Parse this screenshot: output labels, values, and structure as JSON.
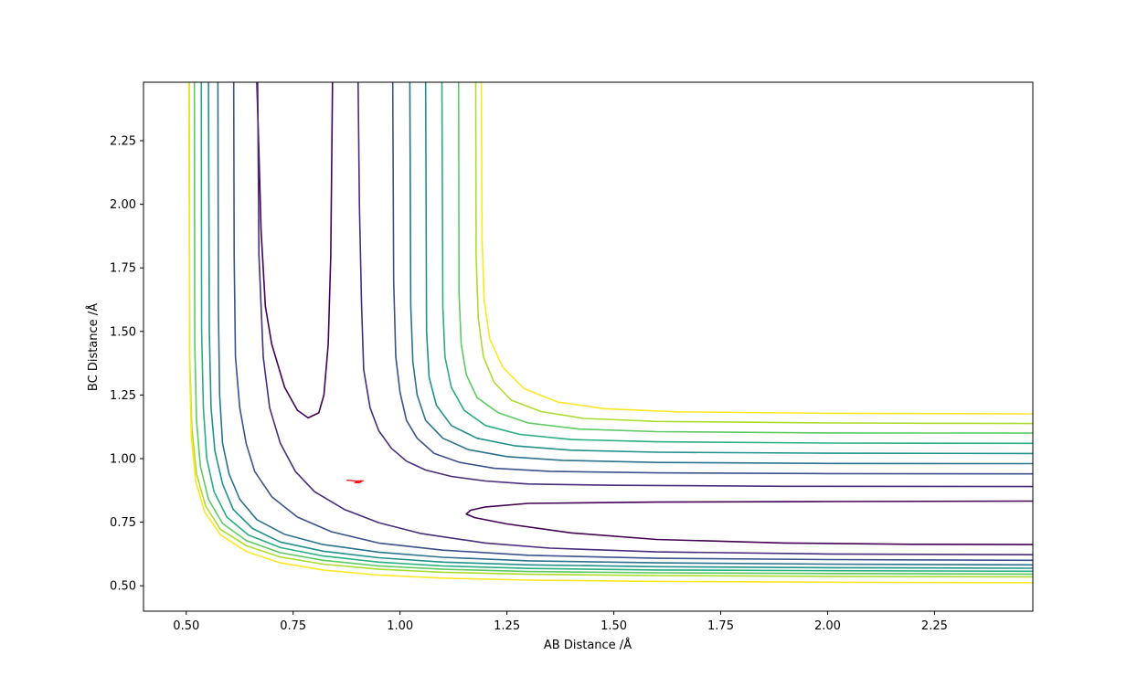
{
  "chart_data": {
    "type": "contour",
    "xlabel": "AB Distance /Å",
    "ylabel": "BC Distance /Å",
    "xlim": [
      0.4,
      2.48
    ],
    "ylim": [
      0.4,
      2.48
    ],
    "x_ticks": [
      0.5,
      0.75,
      1.0,
      1.25,
      1.5,
      1.75,
      2.0,
      2.25
    ],
    "y_ticks": [
      0.5,
      0.75,
      1.0,
      1.25,
      1.5,
      1.75,
      2.0,
      2.25
    ],
    "x_tick_labels": [
      "0.50",
      "0.75",
      "1.00",
      "1.25",
      "1.50",
      "1.75",
      "2.00",
      "2.25"
    ],
    "y_tick_labels": [
      "0.50",
      "0.75",
      "1.00",
      "1.25",
      "1.50",
      "1.75",
      "2.00",
      "2.25"
    ],
    "colormap": "viridis",
    "contour_levels": [
      {
        "level": 0,
        "color": "#440154",
        "segments": [
          [
            [
              0.665,
              2.48
            ],
            [
              0.67,
              2.2
            ],
            [
              0.675,
              1.9
            ],
            [
              0.685,
              1.6
            ],
            [
              0.7,
              1.45
            ],
            [
              0.73,
              1.28
            ],
            [
              0.76,
              1.19
            ],
            [
              0.785,
              1.16
            ],
            [
              0.81,
              1.18
            ],
            [
              0.822,
              1.25
            ],
            [
              0.832,
              1.45
            ],
            [
              0.838,
              1.8
            ],
            [
              0.842,
              2.48
            ]
          ],
          [
            [
              2.48,
              0.833
            ],
            [
              2.0,
              0.831
            ],
            [
              1.6,
              0.829
            ],
            [
              1.3,
              0.824
            ],
            [
              1.2,
              0.81
            ],
            [
              1.165,
              0.797
            ],
            [
              1.155,
              0.782
            ],
            [
              1.175,
              0.768
            ],
            [
              1.25,
              0.743
            ],
            [
              1.4,
              0.708
            ],
            [
              1.6,
              0.682
            ],
            [
              1.9,
              0.668
            ],
            [
              2.2,
              0.663
            ],
            [
              2.48,
              0.662
            ]
          ]
        ]
      },
      {
        "level": 1,
        "color": "#472d7b",
        "segments": [
          [
            [
              2.48,
              0.89
            ],
            [
              1.9,
              0.891
            ],
            [
              1.5,
              0.895
            ],
            [
              1.3,
              0.9
            ],
            [
              1.2,
              0.912
            ],
            [
              1.12,
              0.93
            ],
            [
              1.06,
              0.955
            ],
            [
              1.015,
              0.99
            ],
            [
              0.98,
              1.04
            ],
            [
              0.95,
              1.11
            ],
            [
              0.93,
              1.2
            ],
            [
              0.915,
              1.35
            ],
            [
              0.91,
              1.6
            ],
            [
              0.905,
              2.0
            ],
            [
              0.902,
              2.48
            ]
          ],
          [
            [
              2.48,
              0.622
            ],
            [
              2.0,
              0.625
            ],
            [
              1.6,
              0.633
            ],
            [
              1.35,
              0.648
            ],
            [
              1.2,
              0.668
            ],
            [
              1.05,
              0.705
            ],
            [
              0.95,
              0.748
            ],
            [
              0.87,
              0.8
            ],
            [
              0.8,
              0.87
            ],
            [
              0.755,
              0.95
            ],
            [
              0.72,
              1.06
            ],
            [
              0.695,
              1.2
            ],
            [
              0.68,
              1.4
            ],
            [
              0.67,
              1.8
            ],
            [
              0.667,
              2.48
            ]
          ]
        ]
      },
      {
        "level": 2,
        "color": "#3b528b",
        "segments": [
          [
            [
              2.48,
              0.94
            ],
            [
              2.0,
              0.941
            ],
            [
              1.6,
              0.944
            ],
            [
              1.35,
              0.95
            ],
            [
              1.22,
              0.962
            ],
            [
              1.14,
              0.985
            ],
            [
              1.08,
              1.02
            ],
            [
              1.04,
              1.08
            ],
            [
              1.015,
              1.15
            ],
            [
              1.0,
              1.26
            ],
            [
              0.99,
              1.4
            ],
            [
              0.985,
              1.7
            ],
            [
              0.983,
              2.48
            ]
          ],
          [
            [
              2.48,
              0.6
            ],
            [
              2.0,
              0.603
            ],
            [
              1.6,
              0.608
            ],
            [
              1.3,
              0.62
            ],
            [
              1.1,
              0.64
            ],
            [
              0.95,
              0.668
            ],
            [
              0.84,
              0.712
            ],
            [
              0.76,
              0.77
            ],
            [
              0.7,
              0.85
            ],
            [
              0.66,
              0.95
            ],
            [
              0.64,
              1.06
            ],
            [
              0.625,
              1.2
            ],
            [
              0.615,
              1.4
            ],
            [
              0.612,
              1.8
            ],
            [
              0.611,
              2.48
            ]
          ]
        ]
      },
      {
        "level": 3,
        "color": "#2c728e",
        "segments": [
          [
            [
              2.48,
              0.98
            ],
            [
              2.0,
              0.981
            ],
            [
              1.6,
              0.985
            ],
            [
              1.38,
              0.993
            ],
            [
              1.25,
              1.008
            ],
            [
              1.16,
              1.035
            ],
            [
              1.1,
              1.08
            ],
            [
              1.06,
              1.15
            ],
            [
              1.04,
              1.25
            ],
            [
              1.03,
              1.38
            ],
            [
              1.025,
              1.6
            ],
            [
              1.023,
              2.48
            ]
          ],
          [
            [
              2.48,
              0.582
            ],
            [
              2.0,
              0.585
            ],
            [
              1.6,
              0.59
            ],
            [
              1.3,
              0.598
            ],
            [
              1.1,
              0.612
            ],
            [
              0.95,
              0.632
            ],
            [
              0.82,
              0.662
            ],
            [
              0.73,
              0.702
            ],
            [
              0.665,
              0.76
            ],
            [
              0.625,
              0.84
            ],
            [
              0.6,
              0.94
            ],
            [
              0.585,
              1.06
            ],
            [
              0.578,
              1.25
            ],
            [
              0.575,
              1.6
            ],
            [
              0.574,
              2.48
            ]
          ]
        ]
      },
      {
        "level": 4,
        "color": "#21918c",
        "segments": [
          [
            [
              2.48,
              1.02
            ],
            [
              2.0,
              1.021
            ],
            [
              1.6,
              1.025
            ],
            [
              1.4,
              1.033
            ],
            [
              1.27,
              1.05
            ],
            [
              1.18,
              1.08
            ],
            [
              1.12,
              1.13
            ],
            [
              1.085,
              1.21
            ],
            [
              1.068,
              1.32
            ],
            [
              1.062,
              1.5
            ],
            [
              1.06,
              2.48
            ]
          ],
          [
            [
              2.48,
              0.569
            ],
            [
              2.0,
              0.571
            ],
            [
              1.6,
              0.575
            ],
            [
              1.3,
              0.582
            ],
            [
              1.1,
              0.593
            ],
            [
              0.95,
              0.61
            ],
            [
              0.82,
              0.636
            ],
            [
              0.72,
              0.672
            ],
            [
              0.655,
              0.725
            ],
            [
              0.61,
              0.8
            ],
            [
              0.585,
              0.9
            ],
            [
              0.567,
              1.03
            ],
            [
              0.558,
              1.2
            ],
            [
              0.554,
              1.5
            ],
            [
              0.552,
              2.48
            ]
          ]
        ]
      },
      {
        "level": 5,
        "color": "#28ae80",
        "segments": [
          [
            [
              2.48,
              1.06
            ],
            [
              2.0,
              1.061
            ],
            [
              1.6,
              1.066
            ],
            [
              1.4,
              1.075
            ],
            [
              1.28,
              1.095
            ],
            [
              1.2,
              1.13
            ],
            [
              1.15,
              1.19
            ],
            [
              1.12,
              1.28
            ],
            [
              1.105,
              1.4
            ],
            [
              1.1,
              1.6
            ],
            [
              1.098,
              2.48
            ]
          ],
          [
            [
              2.48,
              0.557
            ],
            [
              2.0,
              0.559
            ],
            [
              1.6,
              0.562
            ],
            [
              1.3,
              0.568
            ],
            [
              1.1,
              0.578
            ],
            [
              0.95,
              0.593
            ],
            [
              0.82,
              0.617
            ],
            [
              0.72,
              0.65
            ],
            [
              0.645,
              0.7
            ],
            [
              0.595,
              0.77
            ],
            [
              0.565,
              0.87
            ],
            [
              0.548,
              1.0
            ],
            [
              0.54,
              1.2
            ],
            [
              0.536,
              1.5
            ],
            [
              0.535,
              2.48
            ]
          ]
        ]
      },
      {
        "level": 6,
        "color": "#5ec962",
        "segments": [
          [
            [
              2.48,
              1.1
            ],
            [
              2.0,
              1.101
            ],
            [
              1.6,
              1.106
            ],
            [
              1.42,
              1.116
            ],
            [
              1.3,
              1.14
            ],
            [
              1.23,
              1.18
            ],
            [
              1.18,
              1.24
            ],
            [
              1.155,
              1.33
            ],
            [
              1.143,
              1.45
            ],
            [
              1.138,
              1.65
            ],
            [
              1.137,
              2.48
            ]
          ],
          [
            [
              2.48,
              0.546
            ],
            [
              2.0,
              0.548
            ],
            [
              1.6,
              0.551
            ],
            [
              1.3,
              0.556
            ],
            [
              1.1,
              0.565
            ],
            [
              0.95,
              0.578
            ],
            [
              0.82,
              0.6
            ],
            [
              0.72,
              0.63
            ],
            [
              0.64,
              0.678
            ],
            [
              0.585,
              0.745
            ],
            [
              0.552,
              0.84
            ],
            [
              0.533,
              0.97
            ],
            [
              0.524,
              1.15
            ],
            [
              0.52,
              1.45
            ],
            [
              0.519,
              2.48
            ]
          ]
        ]
      },
      {
        "level": 7,
        "color": "#addc30",
        "segments": [
          [
            [
              2.48,
              1.138
            ],
            [
              2.0,
              1.14
            ],
            [
              1.6,
              1.146
            ],
            [
              1.43,
              1.158
            ],
            [
              1.33,
              1.185
            ],
            [
              1.26,
              1.23
            ],
            [
              1.22,
              1.3
            ],
            [
              1.195,
              1.4
            ],
            [
              1.183,
              1.55
            ],
            [
              1.178,
              1.8
            ],
            [
              1.177,
              2.48
            ]
          ],
          [
            [
              2.48,
              0.535
            ],
            [
              2.0,
              0.537
            ],
            [
              1.6,
              0.54
            ],
            [
              1.3,
              0.545
            ],
            [
              1.1,
              0.553
            ],
            [
              0.95,
              0.565
            ],
            [
              0.82,
              0.585
            ],
            [
              0.72,
              0.613
            ],
            [
              0.64,
              0.658
            ],
            [
              0.58,
              0.722
            ],
            [
              0.545,
              0.815
            ],
            [
              0.524,
              0.94
            ],
            [
              0.513,
              1.12
            ],
            [
              0.508,
              1.4
            ],
            [
              0.507,
              2.48
            ]
          ]
        ]
      },
      {
        "level": 8,
        "color": "#fde725",
        "segments": [
          [
            [
              2.48,
              1.176
            ],
            [
              2.0,
              1.178
            ],
            [
              1.65,
              1.184
            ],
            [
              1.48,
              1.196
            ],
            [
              1.37,
              1.222
            ],
            [
              1.29,
              1.275
            ],
            [
              1.24,
              1.36
            ],
            [
              1.21,
              1.47
            ],
            [
              1.197,
              1.62
            ],
            [
              1.192,
              1.85
            ],
            [
              1.19,
              2.48
            ]
          ],
          [
            [
              2.48,
              0.512
            ],
            [
              2.0,
              0.514
            ],
            [
              1.6,
              0.517
            ],
            [
              1.3,
              0.522
            ],
            [
              1.1,
              0.53
            ],
            [
              0.95,
              0.542
            ],
            [
              0.82,
              0.562
            ],
            [
              0.72,
              0.59
            ],
            [
              0.64,
              0.635
            ],
            [
              0.58,
              0.7
            ],
            [
              0.543,
              0.79
            ],
            [
              0.522,
              0.91
            ],
            [
              0.512,
              1.08
            ],
            [
              0.508,
              1.35
            ],
            [
              0.506,
              2.48
            ]
          ]
        ]
      }
    ],
    "trajectory": {
      "color": "#ff0000",
      "points": [
        [
          0.875,
          0.915
        ],
        [
          0.895,
          0.912
        ],
        [
          0.91,
          0.91
        ],
        [
          0.905,
          0.905
        ],
        [
          0.895,
          0.905
        ],
        [
          0.9,
          0.912
        ],
        [
          0.915,
          0.913
        ]
      ]
    }
  }
}
